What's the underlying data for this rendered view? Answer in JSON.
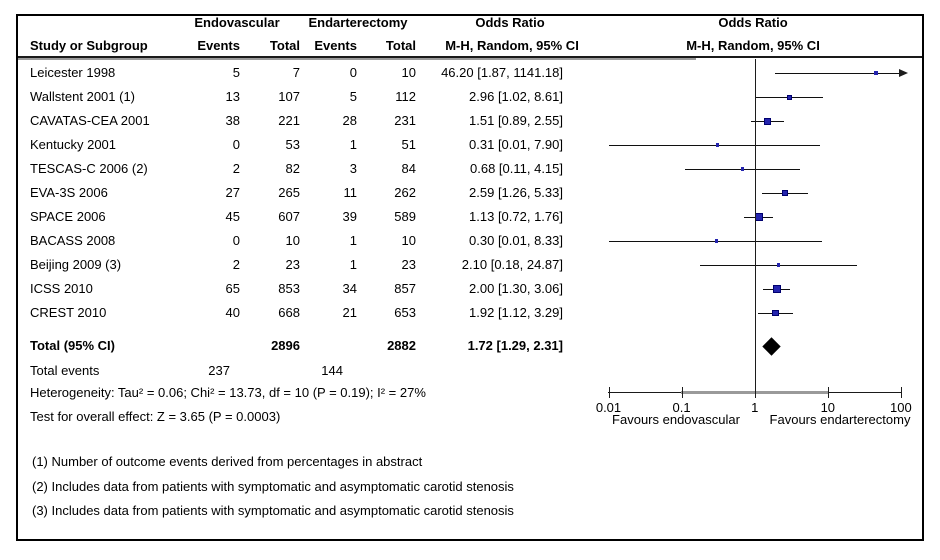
{
  "header": {
    "group1": "Endovascular",
    "group2": "Endarterectomy",
    "or_col_title": "Odds Ratio",
    "or_col_subtitle": "M-H, Random, 95% CI",
    "plot_title": "Odds Ratio",
    "plot_subtitle": "M-H, Random, 95% CI",
    "study_col": "Study or Subgroup",
    "events_col1": "Events",
    "total_col1": "Total",
    "events_col2": "Events",
    "total_col2": "Total"
  },
  "chart_data": {
    "type": "forest",
    "effect_measure": "Odds Ratio",
    "model": "M-H, Random, 95% CI",
    "x_scale": "log",
    "x_ticks": [
      "0.01",
      "0.1",
      "1",
      "10",
      "100"
    ],
    "x_range": [
      0.01,
      100
    ],
    "favours_left": "Favours endovascular",
    "favours_right": "Favours endarterectomy",
    "studies": [
      {
        "name": "Leicester 1998",
        "events1": "5",
        "total1": "7",
        "events2": "0",
        "total2": "10",
        "or": 46.2,
        "ci_low": 1.87,
        "ci_high": 1141.18,
        "ci_text": "46.20 [1.87, 1141.18]",
        "marker": 4
      },
      {
        "name": "Wallstent 2001 (1)",
        "events1": "13",
        "total1": "107",
        "events2": "5",
        "total2": "112",
        "or": 2.96,
        "ci_low": 1.02,
        "ci_high": 8.61,
        "ci_text": "2.96 [1.02, 8.61]",
        "marker": 5
      },
      {
        "name": "CAVATAS-CEA 2001",
        "events1": "38",
        "total1": "221",
        "events2": "28",
        "total2": "231",
        "or": 1.51,
        "ci_low": 0.89,
        "ci_high": 2.55,
        "ci_text": "1.51 [0.89, 2.55]",
        "marker": 7
      },
      {
        "name": "Kentucky 2001",
        "events1": "0",
        "total1": "53",
        "events2": "1",
        "total2": "51",
        "or": 0.31,
        "ci_low": 0.01,
        "ci_high": 7.9,
        "ci_text": "0.31 [0.01, 7.90]",
        "marker": 3.5
      },
      {
        "name": "TESCAS-C 2006 (2)",
        "events1": "2",
        "total1": "82",
        "events2": "3",
        "total2": "84",
        "or": 0.68,
        "ci_low": 0.11,
        "ci_high": 4.15,
        "ci_text": "0.68 [0.11, 4.15]",
        "marker": 3.5
      },
      {
        "name": "EVA-3S 2006",
        "events1": "27",
        "total1": "265",
        "events2": "11",
        "total2": "262",
        "or": 2.59,
        "ci_low": 1.26,
        "ci_high": 5.33,
        "ci_text": "2.59 [1.26, 5.33]",
        "marker": 5.5
      },
      {
        "name": "SPACE 2006",
        "events1": "45",
        "total1": "607",
        "events2": "39",
        "total2": "589",
        "or": 1.13,
        "ci_low": 0.72,
        "ci_high": 1.76,
        "ci_text": "1.13 [0.72, 1.76]",
        "marker": 8
      },
      {
        "name": "BACASS 2008",
        "events1": "0",
        "total1": "10",
        "events2": "1",
        "total2": "10",
        "or": 0.3,
        "ci_low": 0.01,
        "ci_high": 8.33,
        "ci_text": "0.30 [0.01, 8.33]",
        "marker": 3.5
      },
      {
        "name": "Beijing 2009 (3)",
        "events1": "2",
        "total1": "23",
        "events2": "1",
        "total2": "23",
        "or": 2.1,
        "ci_low": 0.18,
        "ci_high": 24.87,
        "ci_text": "2.10 [0.18, 24.87]",
        "marker": 3.5
      },
      {
        "name": "ICSS 2010",
        "events1": "65",
        "total1": "853",
        "events2": "34",
        "total2": "857",
        "or": 2.0,
        "ci_low": 1.3,
        "ci_high": 3.06,
        "ci_text": "2.00 [1.30, 3.06]",
        "marker": 8
      },
      {
        "name": "CREST 2010",
        "events1": "40",
        "total1": "668",
        "events2": "21",
        "total2": "653",
        "or": 1.92,
        "ci_low": 1.12,
        "ci_high": 3.29,
        "ci_text": "1.92 [1.12, 3.29]",
        "marker": 6.5
      }
    ],
    "total": {
      "label": "Total (95% CI)",
      "total1": "2896",
      "total2": "2882",
      "or": 1.72,
      "ci_low": 1.29,
      "ci_high": 2.31,
      "ci_text": "1.72 [1.29, 2.31]"
    },
    "total_events": {
      "label": "Total events",
      "events1": "237",
      "events2": "144"
    },
    "heterogeneity": "Heterogeneity: Tau² = 0.06; Chi² = 13.73, df = 10 (P = 0.19); I² = 27%",
    "overall_effect": "Test for overall effect: Z = 3.65 (P = 0.0003)"
  },
  "footnotes": [
    "(1) Number of outcome events derived from percentages in abstract",
    "(2) Includes data from patients with symptomatic and asymptomatic carotid stenosis",
    "(3) Includes data from patients with symptomatic and asymptomatic carotid stenosis"
  ],
  "colors": {
    "marker_fill": "#2424AE",
    "marker_border": "#00006E",
    "diamond": "#000000",
    "axis_line": "#1c1c1c",
    "shadow_gray": "#9A9A9A"
  }
}
